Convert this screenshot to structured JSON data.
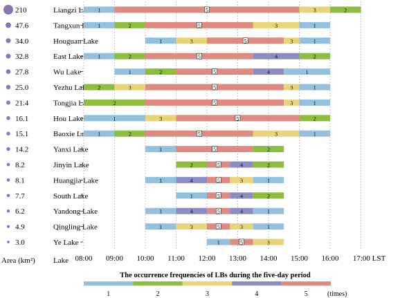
{
  "chart_data": {
    "type": "timeline",
    "axis_labels": {
      "area": "Area (km²)",
      "lake": "Lake",
      "time_unit": "LST"
    },
    "time_ticks": [
      "08:00",
      "09:00",
      "10:00",
      "11:00",
      "12:00",
      "13:00",
      "14:00",
      "15:00",
      "16:00",
      "17:00"
    ],
    "legend": {
      "title": "The occurrence frequencies of LBs during the five-day period",
      "levels": [
        {
          "value": 1,
          "label": "1",
          "color": "#93c0df"
        },
        {
          "value": 2,
          "label": "2",
          "color": "#8cbd3f"
        },
        {
          "value": 3,
          "label": "3",
          "color": "#e8d47a"
        },
        {
          "value": 4,
          "label": "4",
          "color": "#8d8bc6"
        },
        {
          "value": 5,
          "label": "5",
          "color": "#df8a80"
        }
      ],
      "unit": "(times)"
    },
    "lakes": [
      {
        "name": "Liangzi Lake",
        "area": "210",
        "area_value": 210,
        "segments": [
          {
            "start": 8,
            "end": 9,
            "value": 1
          },
          {
            "start": 9,
            "end": 15,
            "value": 5
          },
          {
            "start": 15,
            "end": 16,
            "value": 3
          },
          {
            "start": 16,
            "end": 17,
            "value": 2
          }
        ]
      },
      {
        "name": "Tangxun Lake",
        "area": "47.6",
        "area_value": 47.6,
        "segments": [
          {
            "start": 8,
            "end": 9,
            "value": 1
          },
          {
            "start": 9,
            "end": 10,
            "value": 2
          },
          {
            "start": 10,
            "end": 13.5,
            "value": 5
          },
          {
            "start": 13.5,
            "end": 15,
            "value": 3
          },
          {
            "start": 15,
            "end": 16,
            "value": 1
          }
        ]
      },
      {
        "name": "Houguan Lake",
        "area": "34.0",
        "area_value": 34.0,
        "segments": [
          {
            "start": 10,
            "end": 11,
            "value": 1
          },
          {
            "start": 11,
            "end": 12,
            "value": 3
          },
          {
            "start": 12,
            "end": 14.5,
            "value": 5
          },
          {
            "start": 14.5,
            "end": 15,
            "value": 3
          },
          {
            "start": 15,
            "end": 16,
            "value": 1
          }
        ]
      },
      {
        "name": "East Lake",
        "area": "32.8",
        "area_value": 32.8,
        "segments": [
          {
            "start": 8,
            "end": 9,
            "value": 1
          },
          {
            "start": 9,
            "end": 10,
            "value": 2
          },
          {
            "start": 10,
            "end": 13.5,
            "value": 5
          },
          {
            "start": 13.5,
            "end": 15,
            "value": 4
          },
          {
            "start": 15,
            "end": 16,
            "value": 2
          }
        ]
      },
      {
        "name": "Wu Lake",
        "area": "27.8",
        "area_value": 27.8,
        "segments": [
          {
            "start": 9,
            "end": 10,
            "value": 1
          },
          {
            "start": 10,
            "end": 11,
            "value": 2
          },
          {
            "start": 11,
            "end": 13.5,
            "value": 5
          },
          {
            "start": 13.5,
            "end": 14.5,
            "value": 4
          },
          {
            "start": 14.5,
            "end": 16,
            "value": 1
          }
        ]
      },
      {
        "name": "Yezhu Lake",
        "area": "25.0",
        "area_value": 25.0,
        "segments": [
          {
            "start": 8,
            "end": 9,
            "value": 2
          },
          {
            "start": 9,
            "end": 10,
            "value": 3
          },
          {
            "start": 10,
            "end": 14.5,
            "value": 5
          },
          {
            "start": 14.5,
            "end": 15,
            "value": 3
          },
          {
            "start": 15,
            "end": 16,
            "value": 1
          }
        ]
      },
      {
        "name": "Tongjia Lake",
        "area": "21.4",
        "area_value": 21.4,
        "segments": [
          {
            "start": 8,
            "end": 10,
            "value": 2
          },
          {
            "start": 10,
            "end": 14.5,
            "value": 5
          },
          {
            "start": 14.5,
            "end": 15,
            "value": 3
          },
          {
            "start": 15,
            "end": 16,
            "value": 1
          }
        ]
      },
      {
        "name": "Hou Lake",
        "area": "16.1",
        "area_value": 16.1,
        "segments": [
          {
            "start": 8,
            "end": 10,
            "value": 1
          },
          {
            "start": 10,
            "end": 11,
            "value": 3
          },
          {
            "start": 11,
            "end": 15,
            "value": 5
          },
          {
            "start": 15,
            "end": 16,
            "value": 2
          }
        ]
      },
      {
        "name": "Baoxie Lake",
        "area": "15.1",
        "area_value": 15.1,
        "segments": [
          {
            "start": 8,
            "end": 9,
            "value": 1
          },
          {
            "start": 9,
            "end": 10,
            "value": 2
          },
          {
            "start": 10,
            "end": 13.5,
            "value": 5
          },
          {
            "start": 13.5,
            "end": 15,
            "value": 3
          },
          {
            "start": 15,
            "end": 16,
            "value": 1
          }
        ]
      },
      {
        "name": "Yanxi Lake",
        "area": "14.2",
        "area_value": 14.2,
        "segments": [
          {
            "start": 10,
            "end": 11,
            "value": 1
          },
          {
            "start": 11,
            "end": 13.5,
            "value": 5
          },
          {
            "start": 13.5,
            "end": 14.5,
            "value": 2
          }
        ]
      },
      {
        "name": "Jinyin Lake",
        "area": "8.2",
        "area_value": 8.2,
        "segments": [
          {
            "start": 11,
            "end": 12,
            "value": 2
          },
          {
            "start": 12,
            "end": 12.75,
            "value": 5
          },
          {
            "start": 12.75,
            "end": 13.5,
            "value": 4
          },
          {
            "start": 13.5,
            "end": 14.5,
            "value": 2
          }
        ]
      },
      {
        "name": "Huangjia Lake",
        "area": "8.1",
        "area_value": 8.1,
        "segments": [
          {
            "start": 10,
            "end": 11,
            "value": 1
          },
          {
            "start": 11,
            "end": 12,
            "value": 4
          },
          {
            "start": 12,
            "end": 12.75,
            "value": 5
          },
          {
            "start": 12.75,
            "end": 13.5,
            "value": 3
          },
          {
            "start": 13.5,
            "end": 14.5,
            "value": 1
          }
        ]
      },
      {
        "name": "South Lake",
        "area": "7.7",
        "area_value": 7.7,
        "segments": [
          {
            "start": 11,
            "end": 12,
            "value": 1
          },
          {
            "start": 12,
            "end": 12.75,
            "value": 5
          },
          {
            "start": 12.75,
            "end": 13.5,
            "value": 4
          },
          {
            "start": 13.5,
            "end": 14.5,
            "value": 2
          }
        ]
      },
      {
        "name": "Yandong Lake",
        "area": "6.2",
        "area_value": 6.2,
        "segments": [
          {
            "start": 10,
            "end": 11,
            "value": 1
          },
          {
            "start": 11,
            "end": 12,
            "value": 4
          },
          {
            "start": 12,
            "end": 12.75,
            "value": 5
          },
          {
            "start": 12.75,
            "end": 13.5,
            "value": 4
          },
          {
            "start": 13.5,
            "end": 14.5,
            "value": 1
          }
        ]
      },
      {
        "name": "Qingling Lake",
        "area": "4.9",
        "area_value": 4.9,
        "segments": [
          {
            "start": 10,
            "end": 11,
            "value": 1
          },
          {
            "start": 11,
            "end": 12,
            "value": 3
          },
          {
            "start": 12,
            "end": 12.75,
            "value": 5
          },
          {
            "start": 12.75,
            "end": 13.5,
            "value": 3
          },
          {
            "start": 13.5,
            "end": 14.5,
            "value": 1
          }
        ]
      },
      {
        "name": "Ye Lake",
        "area": "3.0",
        "area_value": 3.0,
        "segments": [
          {
            "start": 12,
            "end": 12.75,
            "value": 1
          },
          {
            "start": 12.75,
            "end": 13.5,
            "value": 5
          },
          {
            "start": 13.5,
            "end": 14.5,
            "value": 3
          }
        ]
      }
    ]
  }
}
